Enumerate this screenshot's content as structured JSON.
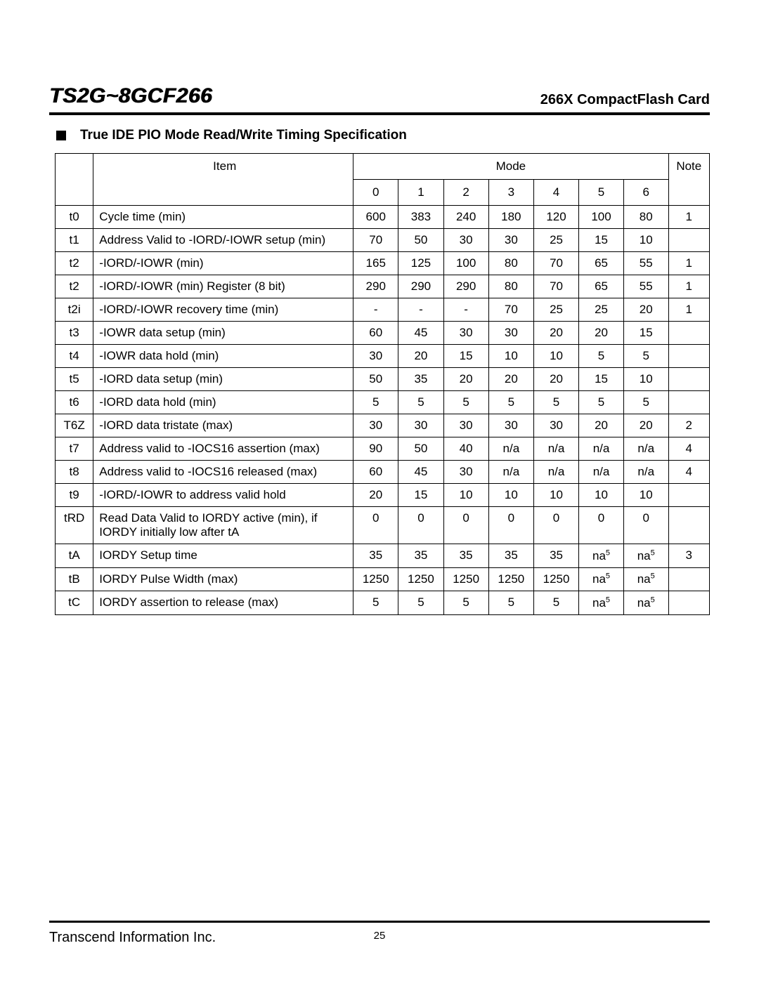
{
  "header": {
    "doc_title": "TS2G~8GCF266",
    "product_name": "266X CompactFlash Card"
  },
  "section": {
    "title": "True IDE PIO Mode Read/Write Timing Specification"
  },
  "table": {
    "header_item": "Item",
    "header_mode": "Mode",
    "header_note": "Note",
    "mode_labels": [
      "0",
      "1",
      "2",
      "3",
      "4",
      "5",
      "6"
    ],
    "rows": [
      {
        "sym": "t0",
        "item": "Cycle time (min)",
        "vals": [
          "600",
          "383",
          "240",
          "180",
          "120",
          "100",
          "80"
        ],
        "note": "1"
      },
      {
        "sym": "t1",
        "item": "Address Valid to -IORD/-IOWR setup (min)",
        "vals": [
          "70",
          "50",
          "30",
          "30",
          "25",
          "15",
          "10"
        ],
        "note": ""
      },
      {
        "sym": "t2",
        "item": "-IORD/-IOWR (min)",
        "vals": [
          "165",
          "125",
          "100",
          "80",
          "70",
          "65",
          "55"
        ],
        "note": "1"
      },
      {
        "sym": "t2",
        "item": "-IORD/-IOWR (min) Register (8 bit)",
        "vals": [
          "290",
          "290",
          "290",
          "80",
          "70",
          "65",
          "55"
        ],
        "note": "1"
      },
      {
        "sym": "t2i",
        "item": "-IORD/-IOWR recovery time (min)",
        "vals": [
          "-",
          "-",
          "-",
          "70",
          "25",
          "25",
          "20"
        ],
        "note": "1"
      },
      {
        "sym": "t3",
        "item": "-IOWR data setup (min)",
        "vals": [
          "60",
          "45",
          "30",
          "30",
          "20",
          "20",
          "15"
        ],
        "note": ""
      },
      {
        "sym": "t4",
        "item": "-IOWR data hold (min)",
        "vals": [
          "30",
          "20",
          "15",
          "10",
          "10",
          "5",
          "5"
        ],
        "note": ""
      },
      {
        "sym": "t5",
        "item": "-IORD data setup (min)",
        "vals": [
          "50",
          "35",
          "20",
          "20",
          "20",
          "15",
          "10"
        ],
        "note": ""
      },
      {
        "sym": "t6",
        "item": "-IORD data hold (min)",
        "vals": [
          "5",
          "5",
          "5",
          "5",
          "5",
          "5",
          "5"
        ],
        "note": ""
      },
      {
        "sym": "T6Z",
        "item": "-IORD data tristate (max)",
        "vals": [
          "30",
          "30",
          "30",
          "30",
          "30",
          "20",
          "20"
        ],
        "note": "2"
      },
      {
        "sym": "t7",
        "item": "Address valid to -IOCS16 assertion (max)",
        "vals": [
          "90",
          "50",
          "40",
          "n/a",
          "n/a",
          "n/a",
          "n/a"
        ],
        "note": "4"
      },
      {
        "sym": "t8",
        "item": "Address valid to -IOCS16 released (max)",
        "vals": [
          "60",
          "45",
          "30",
          "n/a",
          "n/a",
          "n/a",
          "n/a"
        ],
        "note": "4"
      },
      {
        "sym": "t9",
        "item": "-IORD/-IOWR to address valid hold",
        "vals": [
          "20",
          "15",
          "10",
          "10",
          "10",
          "10",
          "10"
        ],
        "note": ""
      },
      {
        "sym": "tRD",
        "item": "Read Data Valid to IORDY active (min), if IORDY initially low after tA",
        "vals": [
          "0",
          "0",
          "0",
          "0",
          "0",
          "0",
          "0"
        ],
        "note": ""
      },
      {
        "sym": "tA",
        "item": "IORDY Setup time",
        "vals": [
          "35",
          "35",
          "35",
          "35",
          "35",
          "na^5",
          "na^5"
        ],
        "note": "3"
      },
      {
        "sym": "tB",
        "item": "IORDY Pulse Width (max)",
        "vals": [
          "1250",
          "1250",
          "1250",
          "1250",
          "1250",
          "na^5",
          "na^5"
        ],
        "note": ""
      },
      {
        "sym": "tC",
        "item": "IORDY assertion to release (max)",
        "vals": [
          "5",
          "5",
          "5",
          "5",
          "5",
          "na^5",
          "na^5"
        ],
        "note": ""
      }
    ]
  },
  "footer": {
    "company": "Transcend Information Inc.",
    "page_number": "25"
  }
}
